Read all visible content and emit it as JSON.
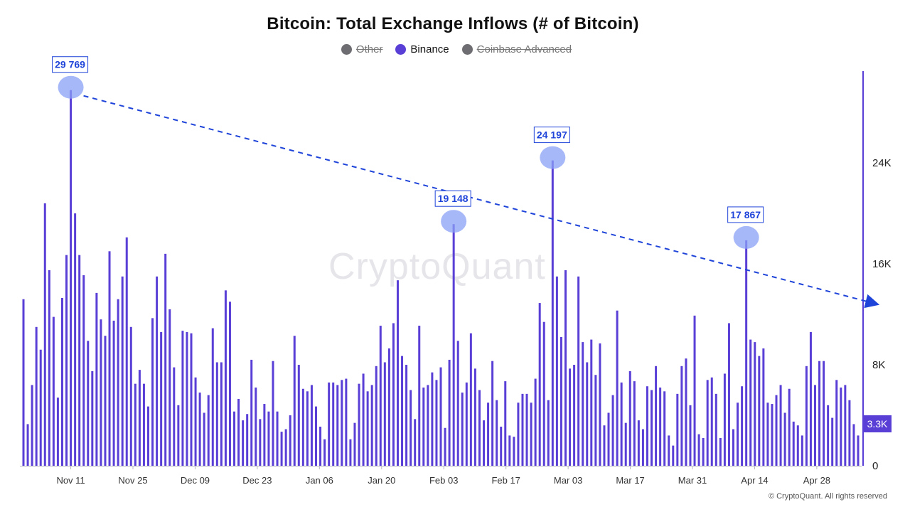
{
  "chart_data": {
    "type": "bar",
    "title": "Bitcoin: Total Exchange Inflows (# of Bitcoin)",
    "legend": [
      {
        "name": "Other",
        "color": "#6e6e72",
        "active": false
      },
      {
        "name": "Binance",
        "color": "#5a3fd6",
        "active": true
      },
      {
        "name": "Coinbase Advanced",
        "color": "#6e6e72",
        "active": false
      }
    ],
    "x_ticks": [
      "Nov 11",
      "Nov 25",
      "Dec 09",
      "Dec 23",
      "Jan 06",
      "Jan 20",
      "Feb 03",
      "Feb 17",
      "Mar 03",
      "Mar 17",
      "Mar 31",
      "Apr 14",
      "Apr 28"
    ],
    "y_ticks": [
      "0",
      "8K",
      "16K",
      "24K"
    ],
    "ylim": [
      0,
      31500
    ],
    "y_axis_side": "right",
    "last_value_label": "3.3K",
    "series": [
      {
        "name": "Binance",
        "values": [
          13200,
          3300,
          6400,
          11000,
          9200,
          20800,
          15500,
          11800,
          5400,
          13300,
          16700,
          29769,
          20000,
          16700,
          15100,
          9900,
          7500,
          13700,
          11600,
          10300,
          17000,
          11500,
          13200,
          15000,
          18100,
          11000,
          6500,
          7600,
          6500,
          4700,
          11700,
          15000,
          10600,
          16800,
          12400,
          7800,
          4800,
          10700,
          10600,
          10500,
          7000,
          5800,
          4200,
          5600,
          10900,
          8200,
          8200,
          13900,
          13000,
          4300,
          5300,
          3600,
          4100,
          8400,
          6200,
          3700,
          4900,
          4300,
          8300,
          4300,
          2700,
          2900,
          4000,
          10300,
          8000,
          6100,
          5900,
          6400,
          4700,
          3100,
          2100,
          6600,
          6600,
          6400,
          6800,
          6900,
          2100,
          3400,
          6500,
          7300,
          5900,
          6400,
          7900,
          11100,
          8200,
          9300,
          11300,
          14700,
          8700,
          8000,
          6000,
          3700,
          11100,
          6200,
          6400,
          7400,
          6800,
          7800,
          3000,
          8400,
          19148,
          9900,
          5800,
          6600,
          10500,
          7700,
          6000,
          3600,
          5000,
          8300,
          5200,
          3100,
          6700,
          2400,
          2300,
          5000,
          5700,
          5700,
          5000,
          6900,
          12900,
          11400,
          5200,
          24197,
          15000,
          10200,
          15500,
          7700,
          8000,
          15000,
          9800,
          8200,
          10000,
          7200,
          9700,
          3200,
          4200,
          5600,
          12300,
          6600,
          3400,
          7500,
          6700,
          3600,
          2900,
          6300,
          6000,
          7900,
          6200,
          5900,
          2400,
          1600,
          5700,
          7900,
          8500,
          4800,
          11900,
          2500,
          2200,
          6800,
          7000,
          5700,
          2200,
          7300,
          11300,
          2900,
          5000,
          6300,
          17867,
          10000,
          9800,
          8700,
          9300,
          5000,
          4900,
          5600,
          6400,
          4200,
          6100,
          3500,
          3200,
          2400,
          7900,
          10600,
          6400,
          8300,
          8300,
          4800,
          3800,
          6800,
          6200,
          6400,
          5200,
          3300,
          2400
        ]
      }
    ],
    "annotations": [
      {
        "text": "29 769",
        "index": 11,
        "value": 29769
      },
      {
        "text": "19 148",
        "index": 100,
        "value": 19148
      },
      {
        "text": "24 197",
        "index": 123,
        "value": 24197
      },
      {
        "text": "17 867",
        "index": 168,
        "value": 17867
      }
    ],
    "trend_line": {
      "from_index": 11,
      "from_value": 29769,
      "to_index": 200,
      "to_value": 12000,
      "style": "dashed",
      "color": "#1f44d9"
    }
  },
  "watermark": "CryptoQuant",
  "copyright": "© CryptoQuant. All rights reserved"
}
